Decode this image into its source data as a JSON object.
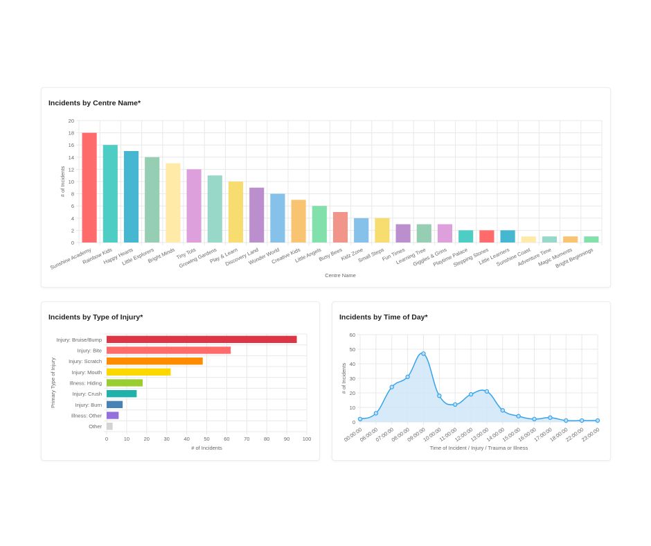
{
  "chart_data": [
    {
      "type": "bar",
      "title": "Incidents by Centre Name*",
      "xlabel": "Centre Name",
      "ylabel": "# of Incidents",
      "ylim": [
        0,
        20
      ],
      "yticks": [
        0,
        2,
        4,
        6,
        8,
        10,
        12,
        14,
        16,
        18,
        20
      ],
      "grid": true,
      "categories": [
        "Sunshine Academy",
        "Rainbow Kids",
        "Happy Hearts",
        "Little Explorers",
        "Bright Minds",
        "Tiny Tots",
        "Growing Gardens",
        "Play & Learn",
        "Discovery Land",
        "Wonder World",
        "Creative Kids",
        "Little Angels",
        "Busy Bees",
        "Kidz Zone",
        "Small Steps",
        "Fun Times",
        "Learning Tree",
        "Giggles & Grins",
        "Playtime Palace",
        "Stepping Stones",
        "Little Learners",
        "Sunshine Coast",
        "Adventure Time",
        "Magic Moments",
        "Bright Beginnings"
      ],
      "values": [
        18,
        16,
        15,
        14,
        13,
        12,
        11,
        10,
        9,
        8,
        7,
        6,
        5,
        4,
        4,
        3,
        3,
        3,
        2,
        2,
        2,
        1,
        1,
        1,
        1
      ],
      "colors": [
        "#ff6b6b",
        "#4ecdc4",
        "#45b7d1",
        "#96ceb4",
        "#ffeaa7",
        "#dda0dd",
        "#98d8c8",
        "#f7dc6f",
        "#bb8fce",
        "#85c1e9",
        "#f8c471",
        "#82e0aa",
        "#f1948a",
        "#85c1e9",
        "#f7dc6f",
        "#bb8fce",
        "#96ceb4",
        "#dda0dd",
        "#4ecdc4",
        "#ff6b6b",
        "#45b7d1",
        "#ffeaa7",
        "#98d8c8",
        "#f8c471",
        "#82e0aa"
      ]
    },
    {
      "type": "bar",
      "orientation": "horizontal",
      "title": "Incidents by Type of Injury*",
      "xlabel": "# of Incidents",
      "ylabel": "Primary Type of Injury",
      "xlim": [
        0,
        100
      ],
      "xticks": [
        0,
        10,
        20,
        30,
        40,
        50,
        60,
        70,
        80,
        90,
        100
      ],
      "grid": true,
      "categories": [
        "Injury: Bruise/Bump",
        "Injury: Bite",
        "Injury: Scratch",
        "Injury: Mouth",
        "Illness: Hiding",
        "Injury: Crush",
        "Injury: Burn",
        "Illness: Other",
        "Other"
      ],
      "values": [
        95,
        62,
        48,
        32,
        18,
        15,
        8,
        6,
        3
      ],
      "colors": [
        "#dc3545",
        "#ff6b6b",
        "#ff8c00",
        "#ffd700",
        "#9acd32",
        "#20b2aa",
        "#4682b4",
        "#9370db",
        "#d3d3d3"
      ]
    },
    {
      "type": "area",
      "title": "Incidents by Time of Day*",
      "xlabel": "Time of Incident / Injury / Trauma or Illness",
      "ylabel": "# of Incidents",
      "ylim": [
        0,
        60
      ],
      "yticks": [
        0,
        10,
        20,
        30,
        40,
        50,
        60
      ],
      "grid": true,
      "categories": [
        "00:00:00",
        "06:00:00",
        "07:00:00",
        "08:00:00",
        "09:00:00",
        "10:00:00",
        "11:00:00",
        "12:00:00",
        "13:00:00",
        "14:00:00",
        "15:00:00",
        "16:00:00",
        "17:00:00",
        "18:00:00",
        "22:00:00",
        "23:00:00"
      ],
      "values": [
        2,
        6,
        24,
        31,
        47,
        18,
        12,
        19,
        21,
        8,
        4,
        2,
        3,
        1,
        1,
        1
      ],
      "line_color": "#36a2eb",
      "fill_color": "#cfe6f8"
    }
  ]
}
